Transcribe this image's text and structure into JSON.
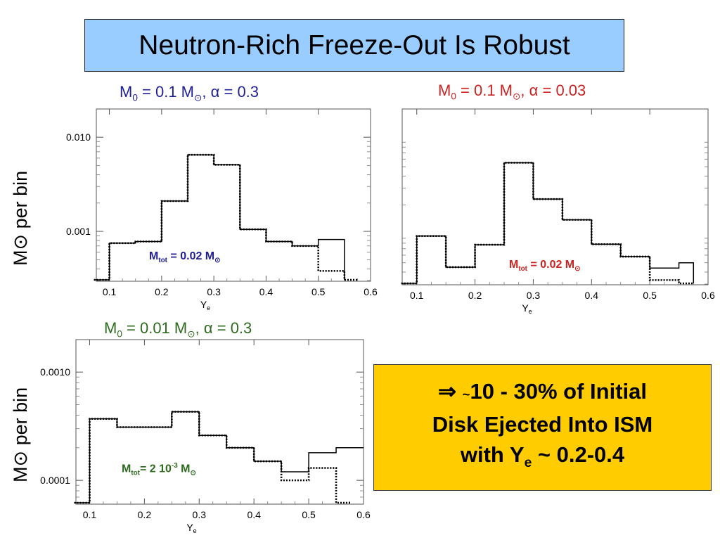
{
  "slide": {
    "title": "Neutron-Rich Freeze-Out Is Robust",
    "ylabel_symbol": "M⊙",
    "ylabel_text": "per bin",
    "callout": {
      "arrow": "⇒",
      "tilde": "~",
      "line1": "10 - 30% of Initial",
      "line2": "Disk Ejected Into ISM",
      "line3_pre": "with Y",
      "line3_sub": "e",
      "line3_post": "~ 0.2-0.4"
    },
    "colors": {
      "blue": "#1f1f99",
      "red": "#cc2222",
      "green": "#2e6b1e",
      "title_bg": "#99ccff",
      "callout_bg": "#ffcc00"
    }
  },
  "chart_data": [
    {
      "type": "line",
      "caption": {
        "m": "M",
        "m_sub": "0",
        "eq": " = 0.1 M",
        "sun": "⊙",
        "rest": ", α = 0.3"
      },
      "annotation": {
        "m": "M",
        "sub": "tot",
        "rest": " = 0.02 M",
        "sun": "⊙"
      },
      "xlabel": "Y",
      "xlabel_sub": "e",
      "xlim": [
        0.075,
        0.6
      ],
      "ylim_log10": [
        -3.53,
        -1.7
      ],
      "xticks": [
        "0.1",
        "0.2",
        "0.3",
        "0.4",
        "0.5",
        "0.6"
      ],
      "yticks": [
        {
          "label": "0.010",
          "value": 0.01
        },
        {
          "label": "0.001",
          "value": 0.001
        }
      ],
      "bin_edges": [
        0.1,
        0.15,
        0.2,
        0.25,
        0.3,
        0.35,
        0.4,
        0.45,
        0.5,
        0.55
      ],
      "series": [
        {
          "style": "solid",
          "values": [
            0.00075,
            0.00078,
            0.0021,
            0.0065,
            0.0051,
            0.00105,
            0.00078,
            0.0007,
            0.00082
          ]
        },
        {
          "style": "dotted",
          "values": [
            0.00075,
            0.00078,
            0.0021,
            0.0065,
            0.0051,
            0.00105,
            0.00078,
            0.0007,
            0.00038
          ]
        }
      ]
    },
    {
      "type": "line",
      "caption": {
        "m": "M",
        "m_sub": "0",
        "eq": " = 0.1 M",
        "sun": "⊙",
        "rest": ", α = 0.03"
      },
      "annotation": {
        "m": "M",
        "sub": "tot",
        "rest": " = 0.02 M",
        "sun": "⊙"
      },
      "xlabel": "Y",
      "xlabel_sub": "e",
      "xlim": [
        0.075,
        0.6
      ],
      "ylim_log10": [
        -3.53,
        -1.7
      ],
      "xticks": [
        "0.1",
        "0.2",
        "0.3",
        "0.4",
        "0.5",
        "0.6"
      ],
      "yticks": [],
      "bin_edges": [
        0.1,
        0.15,
        0.2,
        0.25,
        0.3,
        0.35,
        0.4,
        0.45,
        0.5,
        0.55,
        0.575
      ],
      "series": [
        {
          "style": "solid",
          "values": [
            0.00095,
            0.00045,
            0.00077,
            0.0055,
            0.0023,
            0.0014,
            0.00078,
            0.00058,
            0.00044,
            0.0005
          ]
        },
        {
          "style": "dotted",
          "values": [
            0.00095,
            0.00045,
            0.00077,
            0.0055,
            0.0023,
            0.0014,
            0.00078,
            0.00058,
            0.00033
          ]
        }
      ]
    },
    {
      "type": "line",
      "caption": {
        "m": "M",
        "m_sub": "0",
        "eq": " = 0.01 M",
        "sun": "⊙",
        "rest": ", α = 0.3"
      },
      "annotation": {
        "m": "M",
        "sub": "tot",
        "rest": "= 2 10",
        "sup": "-3",
        "rest2": " M",
        "sun": "⊙"
      },
      "xlabel": "Y",
      "xlabel_sub": "e",
      "xlim": [
        0.075,
        0.6
      ],
      "ylim_log10": [
        -4.22,
        -2.7
      ],
      "xticks": [
        "0.1",
        "0.2",
        "0.3",
        "0.4",
        "0.5",
        "0.6"
      ],
      "yticks": [
        {
          "label": "0.0010",
          "value": 0.001
        },
        {
          "label": "0.0001",
          "value": 0.0001
        }
      ],
      "bin_edges": [
        0.1,
        0.15,
        0.25,
        0.3,
        0.35,
        0.4,
        0.45,
        0.5,
        0.55,
        0.6
      ],
      "series": [
        {
          "style": "solid",
          "values": [
            0.00037,
            0.00031,
            0.00043,
            0.00026,
            0.0002,
            0.00015,
            0.00012,
            0.00018,
            0.0002
          ]
        },
        {
          "style": "dotted",
          "values": [
            0.00037,
            0.00031,
            0.00043,
            0.00026,
            0.0002,
            0.00015,
            0.0001,
            0.00013
          ]
        }
      ]
    }
  ]
}
